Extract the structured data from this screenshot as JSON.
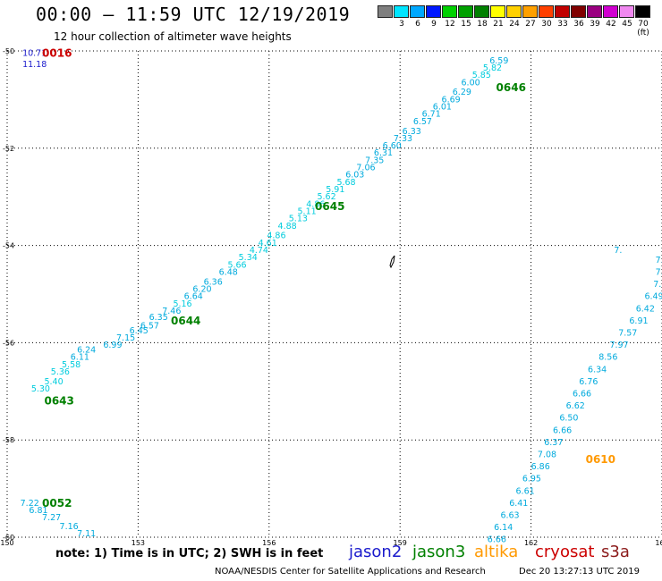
{
  "header": {
    "title": "00:00 – 11:59 UTC 12/19/2019",
    "subtitle": "12 hour collection of altimeter wave heights"
  },
  "legend": {
    "colors": [
      "#7f7f7f",
      "#00e5ff",
      "#00a8ff",
      "#0018ff",
      "#00d000",
      "#00a000",
      "#008000",
      "#ffff00",
      "#ffd000",
      "#ffa000",
      "#ff4000",
      "#c00000",
      "#800000",
      "#9a0080",
      "#d000d0",
      "#f088f0",
      "#000000"
    ],
    "labels": [
      "",
      "3",
      "6",
      "9",
      "12",
      "15",
      "18",
      "21",
      "24",
      "27",
      "30",
      "33",
      "36",
      "39",
      "42",
      "45",
      "70 (ft)"
    ]
  },
  "footer": {
    "note": "note: 1) Time is in UTC; 2) SWH is in feet",
    "satellites": [
      {
        "name": "jason2",
        "color": "#1a1acc"
      },
      {
        "name": "jason3",
        "color": "#008000"
      },
      {
        "name": "altika",
        "color": "#ff9900"
      },
      {
        "name": "cryosat",
        "color": "#cc0000"
      },
      {
        "name": "s3a",
        "color": "#8b1a1a"
      }
    ],
    "credit": "NOAA/NESDIS Center for Satellite Applications and Research",
    "timestamp": "Dec 20 13:27:13 UTC 2019"
  },
  "chart_data": {
    "type": "scatter",
    "xlim": [
      150,
      165
    ],
    "ylim": [
      -60,
      -50
    ],
    "x_ticks": [
      150,
      153,
      156,
      159,
      162,
      165
    ],
    "y_ticks": [
      -50,
      -52,
      -54,
      -56,
      -58,
      -60
    ],
    "x_tick_labels": [
      "150",
      "153",
      "156",
      "159",
      "162",
      "165"
    ],
    "y_tick_labels": [
      "-50",
      "-52",
      "-54",
      "-56",
      "-58",
      "-60"
    ],
    "grid": true,
    "pass_labels": [
      {
        "text": "0016",
        "x": 150.8,
        "y": -50.05,
        "color": "#cc0000"
      },
      {
        "text": "0646",
        "x": 161.2,
        "y": -50.75,
        "color": "#008000"
      },
      {
        "text": "0645",
        "x": 157.05,
        "y": -53.2,
        "color": "#008000"
      },
      {
        "text": "0644",
        "x": 153.75,
        "y": -55.55,
        "color": "#008000"
      },
      {
        "text": "0643",
        "x": 150.85,
        "y": -57.2,
        "color": "#008000"
      },
      {
        "text": "0610",
        "x": 163.25,
        "y": -58.4,
        "color": "#ff9900"
      },
      {
        "text": "0052",
        "x": 150.8,
        "y": -59.3,
        "color": "#008000"
      }
    ],
    "series": [
      {
        "name": "0016",
        "points": [
          {
            "x": 150.35,
            "y": -50.05,
            "v": "10.71",
            "c": "#1a1acc"
          },
          {
            "x": 150.35,
            "y": -50.28,
            "v": "11.18",
            "c": "#1a1acc"
          }
        ]
      },
      {
        "name": "0643-0646",
        "points": [
          {
            "x": 150.55,
            "y": -56.95,
            "v": "5.30",
            "c": "#00ccdd"
          },
          {
            "x": 150.85,
            "y": -56.8,
            "v": "5.40",
            "c": "#00ccdd"
          },
          {
            "x": 151.0,
            "y": -56.6,
            "v": "5.36",
            "c": "#00ccdd"
          },
          {
            "x": 151.25,
            "y": -56.45,
            "v": "5.58",
            "c": "#00ccdd"
          },
          {
            "x": 151.45,
            "y": -56.3,
            "v": "6.11",
            "c": "#00aadd"
          },
          {
            "x": 151.6,
            "y": -56.15,
            "v": "6.24",
            "c": "#00aadd"
          },
          {
            "x": 152.2,
            "y": -56.05,
            "v": "6.99",
            "c": "#00aadd"
          },
          {
            "x": 152.5,
            "y": -55.9,
            "v": "7.15",
            "c": "#00aadd"
          },
          {
            "x": 152.8,
            "y": -55.75,
            "v": "6.45",
            "c": "#00aadd"
          },
          {
            "x": 153.05,
            "y": -55.65,
            "v": "6.57",
            "c": "#00aadd"
          },
          {
            "x": 153.25,
            "y": -55.48,
            "v": "6.35",
            "c": "#00aadd"
          },
          {
            "x": 153.55,
            "y": -55.35,
            "v": "7.46",
            "c": "#00aadd"
          },
          {
            "x": 153.8,
            "y": -55.2,
            "v": "5.16",
            "c": "#00ccdd"
          },
          {
            "x": 154.05,
            "y": -55.05,
            "v": "6.64",
            "c": "#00aadd"
          },
          {
            "x": 154.25,
            "y": -54.9,
            "v": "6.20",
            "c": "#00aadd"
          },
          {
            "x": 154.5,
            "y": -54.75,
            "v": "6.36",
            "c": "#00aadd"
          },
          {
            "x": 154.85,
            "y": -54.55,
            "v": "6.48",
            "c": "#00aadd"
          },
          {
            "x": 155.05,
            "y": -54.4,
            "v": "5.66",
            "c": "#00ccdd"
          },
          {
            "x": 155.3,
            "y": -54.25,
            "v": "5.34",
            "c": "#00ccdd"
          },
          {
            "x": 155.55,
            "y": -54.1,
            "v": "4.74",
            "c": "#00ccdd"
          },
          {
            "x": 155.75,
            "y": -53.95,
            "v": "4.61",
            "c": "#00ccdd"
          },
          {
            "x": 155.95,
            "y": -53.8,
            "v": "4.86",
            "c": "#00ccdd"
          },
          {
            "x": 156.2,
            "y": -53.6,
            "v": "4.88",
            "c": "#00ccdd"
          },
          {
            "x": 156.45,
            "y": -53.45,
            "v": "5.13",
            "c": "#00ccdd"
          },
          {
            "x": 156.65,
            "y": -53.3,
            "v": "5.11",
            "c": "#00ccdd"
          },
          {
            "x": 156.85,
            "y": -53.15,
            "v": "4.86",
            "c": "#00ccdd"
          },
          {
            "x": 157.1,
            "y": -53.0,
            "v": "5.62",
            "c": "#00ccdd"
          },
          {
            "x": 157.3,
            "y": -52.85,
            "v": "5.91",
            "c": "#00ccdd"
          },
          {
            "x": 157.55,
            "y": -52.7,
            "v": "5.68",
            "c": "#00ccdd"
          },
          {
            "x": 157.75,
            "y": -52.55,
            "v": "6.03",
            "c": "#00aadd"
          },
          {
            "x": 158.0,
            "y": -52.4,
            "v": "7.06",
            "c": "#00aadd"
          },
          {
            "x": 158.2,
            "y": -52.25,
            "v": "7.35",
            "c": "#00aadd"
          },
          {
            "x": 158.4,
            "y": -52.1,
            "v": "6.31",
            "c": "#00aadd"
          },
          {
            "x": 158.6,
            "y": -51.95,
            "v": "6.60",
            "c": "#00aadd"
          },
          {
            "x": 158.85,
            "y": -51.8,
            "v": "7.33",
            "c": "#00aadd"
          },
          {
            "x": 159.05,
            "y": -51.65,
            "v": "6.33",
            "c": "#00aadd"
          },
          {
            "x": 159.3,
            "y": -51.45,
            "v": "6.57",
            "c": "#00aadd"
          },
          {
            "x": 159.5,
            "y": -51.3,
            "v": "6.71",
            "c": "#00aadd"
          },
          {
            "x": 159.75,
            "y": -51.15,
            "v": "6.01",
            "c": "#00aadd"
          },
          {
            "x": 159.95,
            "y": -51.0,
            "v": "6.69",
            "c": "#00aadd"
          },
          {
            "x": 160.2,
            "y": -50.85,
            "v": "6.29",
            "c": "#00aadd"
          },
          {
            "x": 160.4,
            "y": -50.65,
            "v": "6.00",
            "c": "#00aadd"
          },
          {
            "x": 160.65,
            "y": -50.5,
            "v": "5.85",
            "c": "#00ccdd"
          },
          {
            "x": 160.9,
            "y": -50.35,
            "v": "5.82",
            "c": "#00ccdd"
          },
          {
            "x": 161.05,
            "y": -50.2,
            "v": "6.59",
            "c": "#00aadd"
          }
        ]
      },
      {
        "name": "0610",
        "points": [
          {
            "x": 163.9,
            "y": -54.1,
            "v": "7.",
            "c": "#00aadd"
          },
          {
            "x": 164.85,
            "y": -54.3,
            "v": "7.",
            "c": "#00aadd"
          },
          {
            "x": 164.85,
            "y": -54.55,
            "v": "7.2",
            "c": "#00aadd"
          },
          {
            "x": 164.8,
            "y": -54.8,
            "v": "7.11",
            "c": "#00aadd"
          },
          {
            "x": 164.6,
            "y": -55.05,
            "v": "6.49",
            "c": "#00aadd"
          },
          {
            "x": 164.4,
            "y": -55.3,
            "v": "6.42",
            "c": "#00aadd"
          },
          {
            "x": 164.25,
            "y": -55.55,
            "v": "6.91",
            "c": "#00aadd"
          },
          {
            "x": 164.0,
            "y": -55.8,
            "v": "7.57",
            "c": "#00aadd"
          },
          {
            "x": 163.8,
            "y": -56.05,
            "v": "7.97",
            "c": "#00aadd"
          },
          {
            "x": 163.55,
            "y": -56.3,
            "v": "8.56",
            "c": "#00aadd"
          },
          {
            "x": 163.3,
            "y": -56.55,
            "v": "6.34",
            "c": "#00aadd"
          },
          {
            "x": 163.1,
            "y": -56.8,
            "v": "6.76",
            "c": "#00aadd"
          },
          {
            "x": 162.95,
            "y": -57.05,
            "v": "6.66",
            "c": "#00aadd"
          },
          {
            "x": 162.8,
            "y": -57.3,
            "v": "6.62",
            "c": "#00aadd"
          },
          {
            "x": 162.65,
            "y": -57.55,
            "v": "6.50",
            "c": "#00aadd"
          },
          {
            "x": 162.5,
            "y": -57.8,
            "v": "6.66",
            "c": "#00aadd"
          },
          {
            "x": 162.3,
            "y": -58.05,
            "v": "6.37",
            "c": "#00aadd"
          },
          {
            "x": 162.15,
            "y": -58.3,
            "v": "7.08",
            "c": "#00aadd"
          },
          {
            "x": 162.0,
            "y": -58.55,
            "v": "6.86",
            "c": "#00aadd"
          },
          {
            "x": 161.8,
            "y": -58.8,
            "v": "6.95",
            "c": "#00aadd"
          },
          {
            "x": 161.65,
            "y": -59.05,
            "v": "6.61",
            "c": "#00aadd"
          },
          {
            "x": 161.5,
            "y": -59.3,
            "v": "6.41",
            "c": "#00aadd"
          },
          {
            "x": 161.3,
            "y": -59.55,
            "v": "6.63",
            "c": "#00aadd"
          },
          {
            "x": 161.15,
            "y": -59.8,
            "v": "6.14",
            "c": "#00aadd"
          },
          {
            "x": 161.0,
            "y": -60.05,
            "v": "6.66",
            "c": "#00aadd"
          }
        ]
      },
      {
        "name": "0052",
        "points": [
          {
            "x": 150.3,
            "y": -59.3,
            "v": "7.22",
            "c": "#00aadd"
          },
          {
            "x": 150.5,
            "y": -59.45,
            "v": "6.81",
            "c": "#00aadd"
          },
          {
            "x": 150.8,
            "y": -59.6,
            "v": "7.27",
            "c": "#00aadd"
          },
          {
            "x": 151.2,
            "y": -59.78,
            "v": "7.16",
            "c": "#00aadd"
          },
          {
            "x": 151.6,
            "y": -59.93,
            "v": "7.11",
            "c": "#00aadd"
          }
        ]
      }
    ]
  }
}
